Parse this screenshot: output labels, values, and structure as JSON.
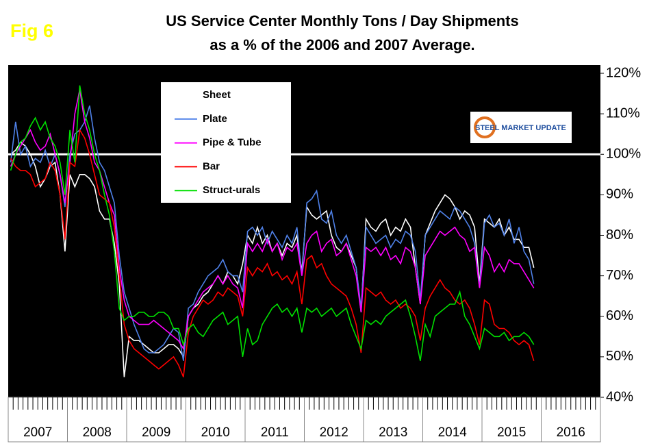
{
  "chart_data": {
    "type": "line",
    "figure_label": "Fig 6",
    "title": "US Service Center Monthly Tons / Day Shipments",
    "subtitle": "as a % of the 2006 and 2007 Average.",
    "logo_text": "STEEL MARKET UPDATE",
    "x": [
      "2007-01",
      "2007-02",
      "2007-03",
      "2007-04",
      "2007-05",
      "2007-06",
      "2007-07",
      "2007-08",
      "2007-09",
      "2007-10",
      "2007-11",
      "2007-12",
      "2008-01",
      "2008-02",
      "2008-03",
      "2008-04",
      "2008-05",
      "2008-06",
      "2008-07",
      "2008-08",
      "2008-09",
      "2008-10",
      "2008-11",
      "2008-12",
      "2009-01",
      "2009-02",
      "2009-03",
      "2009-04",
      "2009-05",
      "2009-06",
      "2009-07",
      "2009-08",
      "2009-09",
      "2009-10",
      "2009-11",
      "2009-12",
      "2010-01",
      "2010-02",
      "2010-03",
      "2010-04",
      "2010-05",
      "2010-06",
      "2010-07",
      "2010-08",
      "2010-09",
      "2010-10",
      "2010-11",
      "2010-12",
      "2011-01",
      "2011-02",
      "2011-03",
      "2011-04",
      "2011-05",
      "2011-06",
      "2011-07",
      "2011-08",
      "2011-09",
      "2011-10",
      "2011-11",
      "2011-12",
      "2012-01",
      "2012-02",
      "2012-03",
      "2012-04",
      "2012-05",
      "2012-06",
      "2012-07",
      "2012-08",
      "2012-09",
      "2012-10",
      "2012-11",
      "2012-12",
      "2013-01",
      "2013-02",
      "2013-03",
      "2013-04",
      "2013-05",
      "2013-06",
      "2013-07",
      "2013-08",
      "2013-09",
      "2013-10",
      "2013-11",
      "2013-12",
      "2014-01",
      "2014-02",
      "2014-03",
      "2014-04",
      "2014-05",
      "2014-06",
      "2014-07",
      "2014-08",
      "2014-09",
      "2014-10",
      "2014-11",
      "2014-12",
      "2015-01",
      "2015-02",
      "2015-03",
      "2015-04",
      "2015-05",
      "2015-06",
      "2015-07",
      "2015-08",
      "2015-09",
      "2015-10",
      "2015-11"
    ],
    "xlim": [
      "2007-01",
      "2016-12"
    ],
    "x_labels": [
      "2007",
      "2008",
      "2009",
      "2010",
      "2011",
      "2012",
      "2013",
      "2014",
      "2015",
      "2016"
    ],
    "ylim": [
      40,
      120
    ],
    "yticks": [
      {
        "value": 40,
        "label": "40%"
      },
      {
        "value": 50,
        "label": "50%"
      },
      {
        "value": 60,
        "label": "60%"
      },
      {
        "value": 70,
        "label": "70%"
      },
      {
        "value": 80,
        "label": "80%"
      },
      {
        "value": 90,
        "label": "90%"
      },
      {
        "value": 100,
        "label": "100%"
      },
      {
        "value": 110,
        "label": "110%"
      },
      {
        "value": 120,
        "label": "120%"
      }
    ],
    "reference_line": 100,
    "legend": "upper left",
    "series": [
      {
        "name": "Sheet",
        "color": "#ffffff",
        "values": [
          100,
          101,
          103,
          102,
          100,
          97,
          92,
          94,
          97,
          98,
          90,
          76,
          95,
          92,
          95,
          95,
          94,
          92,
          86,
          84,
          84,
          78,
          68,
          45,
          55,
          54,
          54,
          53,
          52,
          51,
          51,
          52,
          53,
          53,
          52,
          50,
          60,
          62,
          63,
          65,
          66,
          68,
          70,
          68,
          71,
          70,
          68,
          73,
          80,
          78,
          82,
          78,
          80,
          76,
          78,
          75,
          78,
          77,
          80,
          71,
          87,
          85,
          84,
          85,
          86,
          80,
          77,
          76,
          78,
          75,
          72,
          61,
          84,
          82,
          81,
          83,
          84,
          80,
          82,
          81,
          84,
          82,
          72,
          63,
          80,
          83,
          86,
          88,
          90,
          89,
          87,
          84,
          86,
          85,
          82,
          68,
          84,
          83,
          82,
          84,
          80,
          82,
          79,
          79,
          77,
          77,
          72
        ]
      },
      {
        "name": "Plate",
        "color": "#4f81e8",
        "values": [
          98,
          108,
          100,
          102,
          97,
          99,
          98,
          101,
          97,
          100,
          95,
          87,
          100,
          105,
          106,
          108,
          112,
          104,
          98,
          96,
          92,
          88,
          75,
          66,
          62,
          58,
          55,
          52,
          51,
          51,
          52,
          53,
          55,
          57,
          56,
          49,
          62,
          63,
          66,
          68,
          70,
          71,
          72,
          74,
          71,
          70,
          70,
          66,
          81,
          82,
          80,
          82,
          78,
          81,
          79,
          77,
          80,
          78,
          82,
          70,
          88,
          89,
          91,
          84,
          83,
          86,
          80,
          78,
          80,
          76,
          72,
          62,
          82,
          80,
          78,
          79,
          80,
          77,
          79,
          78,
          81,
          80,
          76,
          64,
          80,
          82,
          84,
          86,
          85,
          84,
          87,
          86,
          84,
          82,
          78,
          67,
          83,
          85,
          82,
          83,
          80,
          84,
          78,
          82,
          76,
          74,
          68
        ]
      },
      {
        "name": "Pipe & Tube",
        "color": "#ff00ff",
        "values": [
          97,
          100,
          102,
          104,
          106,
          103,
          101,
          102,
          105,
          100,
          95,
          88,
          98,
          110,
          116,
          108,
          104,
          98,
          96,
          92,
          88,
          85,
          72,
          64,
          60,
          59,
          58,
          58,
          58,
          59,
          58,
          57,
          56,
          55,
          54,
          52,
          60,
          62,
          64,
          66,
          67,
          68,
          70,
          68,
          70,
          68,
          67,
          62,
          78,
          76,
          78,
          76,
          79,
          76,
          78,
          74,
          77,
          76,
          78,
          70,
          78,
          80,
          81,
          76,
          78,
          79,
          75,
          76,
          78,
          74,
          70,
          61,
          77,
          76,
          77,
          75,
          77,
          74,
          75,
          73,
          77,
          76,
          72,
          63,
          75,
          77,
          79,
          81,
          80,
          81,
          82,
          80,
          79,
          76,
          77,
          67,
          77,
          75,
          71,
          73,
          71,
          74,
          73,
          73,
          71,
          69,
          67
        ]
      },
      {
        "name": "Bar",
        "color": "#ff0000",
        "values": [
          99,
          97,
          96,
          96,
          95,
          92,
          93,
          94,
          98,
          96,
          90,
          79,
          98,
          97,
          106,
          104,
          100,
          95,
          90,
          89,
          88,
          82,
          70,
          58,
          54,
          52,
          51,
          50,
          49,
          48,
          47,
          48,
          49,
          50,
          48,
          45,
          56,
          60,
          62,
          64,
          63,
          64,
          66,
          65,
          67,
          66,
          65,
          60,
          72,
          70,
          72,
          71,
          73,
          70,
          71,
          69,
          70,
          68,
          71,
          63,
          74,
          75,
          72,
          73,
          70,
          68,
          67,
          66,
          65,
          62,
          58,
          51,
          67,
          66,
          65,
          66,
          64,
          63,
          64,
          62,
          63,
          62,
          60,
          54,
          62,
          65,
          67,
          69,
          67,
          66,
          64,
          63,
          64,
          62,
          58,
          53,
          64,
          63,
          58,
          57,
          57,
          56,
          54,
          53,
          54,
          53,
          49
        ]
      },
      {
        "name": "Struct-urals",
        "color": "#00e000",
        "values": [
          96,
          100,
          103,
          104,
          107,
          109,
          106,
          108,
          104,
          102,
          98,
          90,
          106,
          98,
          117,
          110,
          106,
          100,
          96,
          90,
          85,
          76,
          62,
          59,
          60,
          60,
          61,
          61,
          60,
          60,
          61,
          61,
          60,
          57,
          57,
          53,
          57,
          58,
          56,
          55,
          57,
          59,
          60,
          61,
          58,
          59,
          60,
          50,
          57,
          53,
          54,
          58,
          60,
          62,
          63,
          61,
          62,
          60,
          62,
          56,
          62,
          61,
          62,
          60,
          61,
          62,
          60,
          61,
          62,
          58,
          55,
          52,
          59,
          58,
          59,
          58,
          60,
          61,
          62,
          63,
          64,
          60,
          55,
          49,
          58,
          55,
          60,
          61,
          62,
          63,
          63,
          66,
          60,
          58,
          55,
          52,
          57,
          56,
          55,
          55,
          56,
          54,
          55,
          55,
          56,
          55,
          53
        ]
      }
    ]
  }
}
